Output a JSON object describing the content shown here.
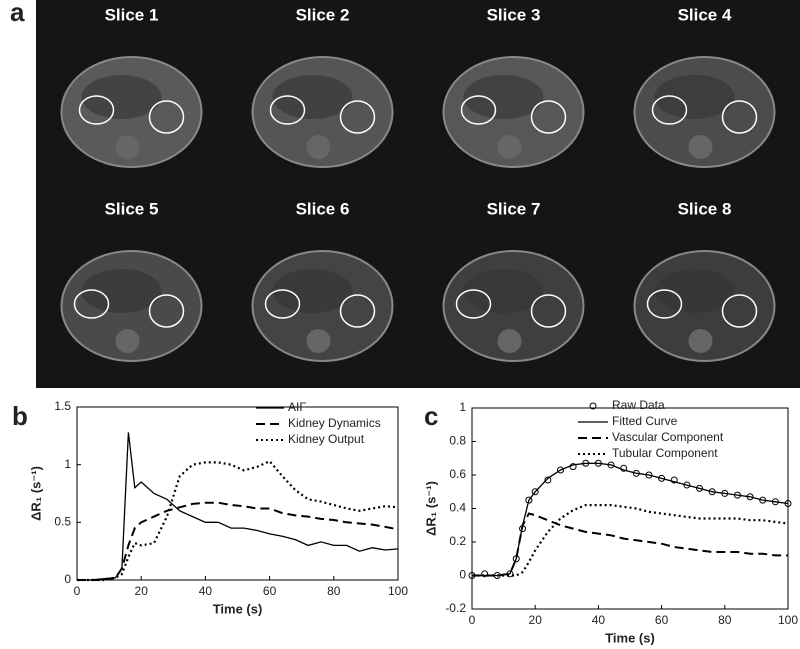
{
  "panel_a": {
    "label": "a",
    "slices": [
      "Slice 1",
      "Slice 2",
      "Slice 3",
      "Slice 4",
      "Slice 5",
      "Slice 6",
      "Slice 7",
      "Slice 8"
    ]
  },
  "chart_data": [
    {
      "type": "line",
      "label": "b",
      "xlabel": "Time (s)",
      "ylabel": "ΔR₁ (s⁻¹)",
      "legend": "upper right",
      "xlim": [
        0,
        100
      ],
      "xticks": [
        0,
        20,
        40,
        60,
        80,
        100
      ],
      "ylim": [
        0,
        1.5
      ],
      "yticks": [
        0,
        0.5,
        1,
        1.5
      ],
      "x": [
        0,
        4,
        8,
        12,
        14,
        16,
        18,
        20,
        24,
        28,
        32,
        36,
        40,
        44,
        48,
        52,
        56,
        60,
        64,
        68,
        72,
        76,
        80,
        84,
        88,
        92,
        96,
        100
      ],
      "series": [
        {
          "name": "AIF",
          "color": "#000000",
          "style": "solid",
          "values": [
            0,
            0,
            0.01,
            0.02,
            0.1,
            1.28,
            0.8,
            0.85,
            0.75,
            0.7,
            0.6,
            0.55,
            0.5,
            0.5,
            0.45,
            0.45,
            0.43,
            0.4,
            0.38,
            0.35,
            0.3,
            0.33,
            0.3,
            0.3,
            0.25,
            0.28,
            0.26,
            0.27
          ]
        },
        {
          "name": "Kidney Dynamics",
          "color": "#000000",
          "style": "dashed",
          "values": [
            0,
            0,
            0,
            0.02,
            0.1,
            0.3,
            0.45,
            0.5,
            0.55,
            0.6,
            0.63,
            0.66,
            0.67,
            0.67,
            0.65,
            0.64,
            0.62,
            0.62,
            0.58,
            0.56,
            0.55,
            0.53,
            0.52,
            0.5,
            0.49,
            0.48,
            0.46,
            0.44
          ]
        },
        {
          "name": "Kidney Output",
          "color": "#000000",
          "style": "dotted",
          "values": [
            0,
            0,
            0,
            0.02,
            0.05,
            0.2,
            0.32,
            0.3,
            0.32,
            0.55,
            0.9,
            1.0,
            1.02,
            1.02,
            1.0,
            0.95,
            0.98,
            1.03,
            0.9,
            0.78,
            0.7,
            0.68,
            0.65,
            0.62,
            0.6,
            0.62,
            0.64,
            0.63
          ]
        }
      ]
    },
    {
      "type": "line",
      "label": "c",
      "xlabel": "Time (s)",
      "ylabel": "ΔR₁ (s⁻¹)",
      "legend": "upper right",
      "xlim": [
        0,
        100
      ],
      "xticks": [
        0,
        20,
        40,
        60,
        80,
        100
      ],
      "ylim": [
        -0.2,
        1
      ],
      "yticks": [
        -0.2,
        0,
        0.2,
        0.4,
        0.6,
        0.8,
        1
      ],
      "x": [
        0,
        4,
        8,
        12,
        14,
        16,
        18,
        20,
        24,
        28,
        32,
        36,
        40,
        44,
        48,
        52,
        56,
        60,
        64,
        68,
        72,
        76,
        80,
        84,
        88,
        92,
        96,
        100
      ],
      "series": [
        {
          "name": "Raw Data",
          "color": "#000000",
          "style": "circle",
          "values": [
            0,
            0.01,
            0,
            0.01,
            0.1,
            0.28,
            0.45,
            0.5,
            0.57,
            0.63,
            0.65,
            0.67,
            0.67,
            0.66,
            0.64,
            0.61,
            0.6,
            0.58,
            0.57,
            0.54,
            0.52,
            0.5,
            0.49,
            0.48,
            0.47,
            0.45,
            0.44,
            0.43
          ]
        },
        {
          "name": "Fitted Curve",
          "color": "#000000",
          "style": "solid",
          "values": [
            0,
            0,
            0,
            0.01,
            0.1,
            0.3,
            0.45,
            0.5,
            0.58,
            0.63,
            0.66,
            0.67,
            0.67,
            0.66,
            0.63,
            0.61,
            0.6,
            0.58,
            0.56,
            0.54,
            0.52,
            0.5,
            0.49,
            0.48,
            0.47,
            0.45,
            0.44,
            0.43
          ]
        },
        {
          "name": "Vascular Component",
          "color": "#000000",
          "style": "dashed",
          "values": [
            0,
            0,
            0,
            0.01,
            0.1,
            0.3,
            0.37,
            0.36,
            0.33,
            0.3,
            0.28,
            0.26,
            0.25,
            0.24,
            0.22,
            0.21,
            0.2,
            0.19,
            0.17,
            0.16,
            0.15,
            0.14,
            0.14,
            0.14,
            0.13,
            0.13,
            0.12,
            0.12
          ]
        },
        {
          "name": "Tubular Component",
          "color": "#000000",
          "style": "dotted",
          "values": [
            0,
            0,
            0,
            0,
            0,
            0.02,
            0.08,
            0.15,
            0.26,
            0.34,
            0.39,
            0.42,
            0.42,
            0.42,
            0.41,
            0.4,
            0.38,
            0.37,
            0.36,
            0.35,
            0.34,
            0.34,
            0.34,
            0.34,
            0.33,
            0.33,
            0.32,
            0.31
          ]
        }
      ]
    }
  ]
}
